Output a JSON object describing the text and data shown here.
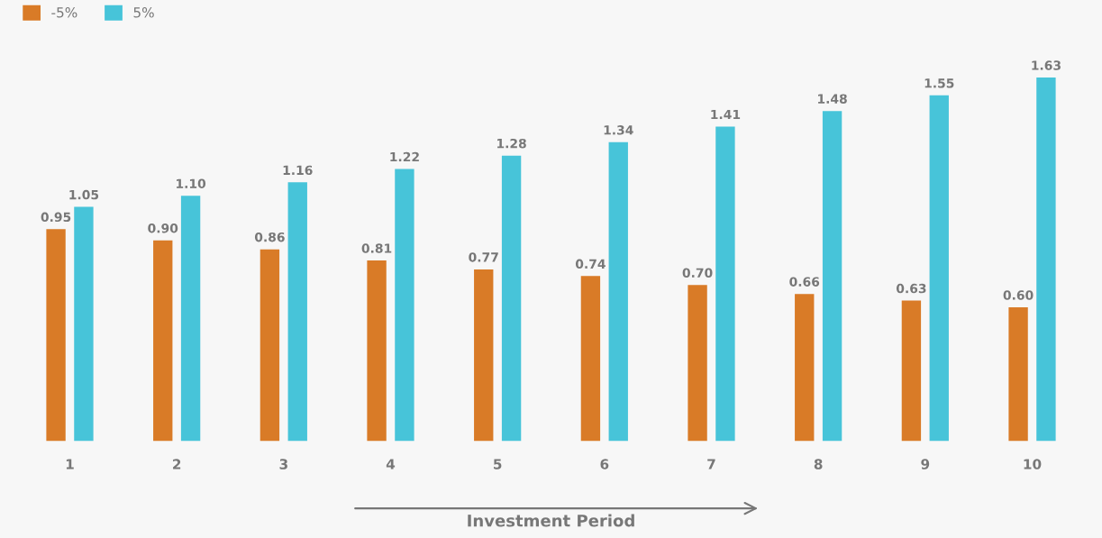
{
  "chart_data": {
    "type": "bar",
    "xlabel": "Investment Period",
    "categories": [
      "1",
      "2",
      "3",
      "4",
      "5",
      "6",
      "7",
      "8",
      "9",
      "10"
    ],
    "series": [
      {
        "name": "-5%",
        "color": "#d97b27",
        "values": [
          0.95,
          0.9,
          0.86,
          0.81,
          0.77,
          0.74,
          0.7,
          0.66,
          0.63,
          0.6
        ],
        "value_labels": [
          "0.95",
          "0.90",
          "0.86",
          "0.81",
          "0.77",
          "0.74",
          "0.70",
          "0.66",
          "0.63",
          "0.60"
        ]
      },
      {
        "name": "5%",
        "color": "#47c4d9",
        "values": [
          1.05,
          1.1,
          1.16,
          1.22,
          1.28,
          1.34,
          1.41,
          1.48,
          1.55,
          1.63
        ],
        "value_labels": [
          "1.05",
          "1.10",
          "1.16",
          "1.22",
          "1.28",
          "1.34",
          "1.41",
          "1.48",
          "1.55",
          "1.63"
        ]
      }
    ],
    "legend": "top left",
    "tick_labels": "x",
    "grid": false
  }
}
